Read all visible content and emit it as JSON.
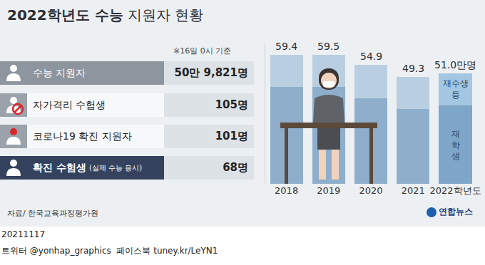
{
  "header": {
    "title_bold": "2022학년도 수능",
    "title_rest": "지원자 현황",
    "note": "※16일 0시 기준"
  },
  "info_panel": {
    "rows": [
      {
        "label": "수능 지원자",
        "value": "50만 9,821명"
      },
      {
        "label": "자가격리 수험생",
        "value": "105명"
      },
      {
        "label": "코로나19 확진 지원자",
        "value": "101명"
      },
      {
        "label": "확진 수험생",
        "label_note": "(실제 수능 응시)",
        "value": "68명"
      }
    ]
  },
  "chart_data": {
    "type": "bar",
    "stacked": true,
    "categories": [
      "2018",
      "2019",
      "2020",
      "2021",
      "2022학년도"
    ],
    "series": [
      {
        "name": "재학생",
        "colors": [
          "#8eaecb",
          "#8eaecb",
          "#8eaecb",
          "#8eaecb",
          "#7ea6c9"
        ],
        "values": [
          44.5,
          44.8,
          39.4,
          34.6,
          36.0
        ]
      },
      {
        "name": "재수생 등",
        "colors": [
          "#b9cfe1",
          "#b9cfe1",
          "#b9cfe1",
          "#b9cfe1",
          "#a3c6e2"
        ],
        "values": [
          14.9,
          14.7,
          15.5,
          14.7,
          15.0
        ]
      }
    ],
    "totals": [
      59.4,
      59.5,
      54.9,
      49.3,
      51.0
    ],
    "total_labels": [
      "59.4",
      "59.5",
      "54.9",
      "49.3",
      "51.0만명"
    ],
    "ylim": [
      0,
      65
    ],
    "tick_labels": "x",
    "grid": false
  },
  "footer": {
    "source": "자료/ 한국교육과정평가원",
    "logo": "연합뉴스",
    "date": "20211117",
    "social": "트위터 @yonhap_graphics  페이스북 tuney.kr/LeYN1"
  }
}
